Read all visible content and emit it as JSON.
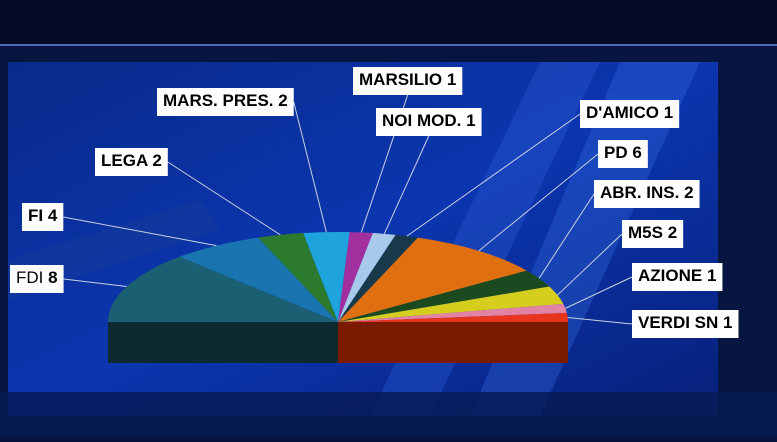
{
  "chart_data": {
    "type": "hemicycle",
    "categories": [
      "FDI",
      "FI",
      "LEGA",
      "MARS. PRES.",
      "MARSILIO",
      "NOI MOD.",
      "D'AMICO ",
      "PD",
      "ABR. INS.",
      "M5S",
      "AZIONE",
      "VERDI SN"
    ],
    "values": [
      8,
      4,
      2,
      2,
      1,
      1,
      1,
      6,
      2,
      2,
      1,
      1
    ],
    "colors": [
      "#1b5f73",
      "#1a74b0",
      "#2b7a2e",
      "#1ea3dc",
      "#a1309e",
      "#a9c9ea",
      "#17394a",
      "#e0700f",
      "#1c4a20",
      "#d6ce1f",
      "#e283a6",
      "#e8361e"
    ]
  }
}
